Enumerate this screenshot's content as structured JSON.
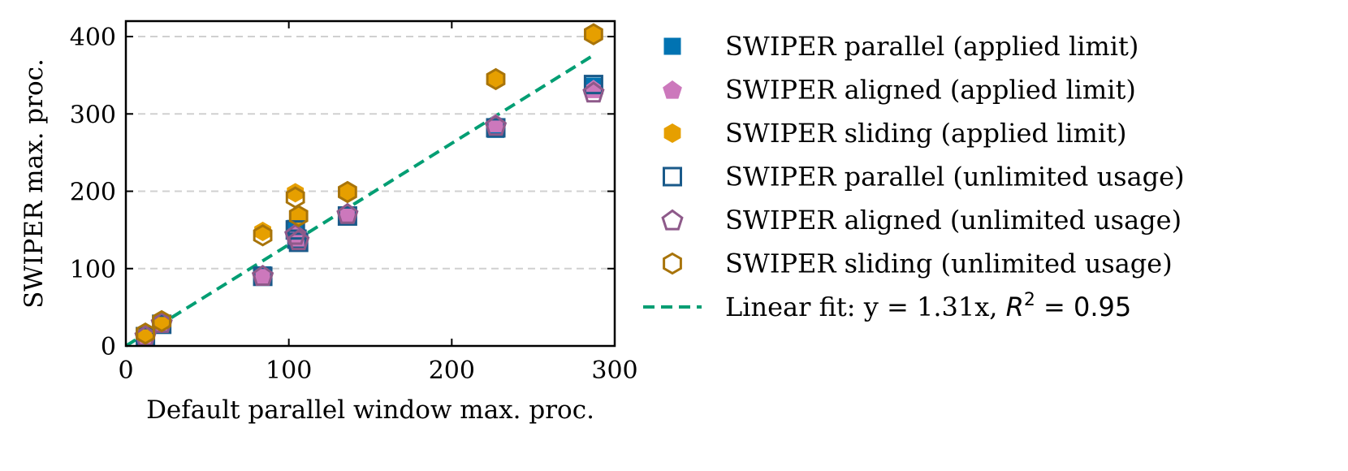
{
  "chart_data": {
    "type": "scatter",
    "xlabel": "Default parallel window max. proc.",
    "ylabel": "SWIPER max. proc.",
    "xlim": [
      0,
      300
    ],
    "ylim": [
      0,
      420
    ],
    "x_ticks": [
      0,
      100,
      200,
      300
    ],
    "x_tick_labels": [
      "0",
      "100",
      "200",
      "300"
    ],
    "y_ticks": [
      0,
      100,
      200,
      300,
      400
    ],
    "y_tick_labels": [
      "0",
      "100",
      "200",
      "300",
      "400"
    ],
    "grid": "horizontal dashed",
    "legend_position": "right outside",
    "series": [
      {
        "name": "SWIPER parallel (applied limit)",
        "marker": "square",
        "filled": true,
        "color": "#0173B2",
        "points": [
          [
            12,
            12
          ],
          [
            22,
            28
          ],
          [
            84,
            92
          ],
          [
            104,
            152
          ],
          [
            105,
            140
          ],
          [
            106,
            133
          ],
          [
            136,
            168
          ],
          [
            227,
            280
          ],
          [
            287,
            336
          ]
        ]
      },
      {
        "name": "SWIPER aligned (applied limit)",
        "marker": "pentagon",
        "filled": true,
        "color": "#CC78BC",
        "points": [
          [
            12,
            12
          ],
          [
            22,
            30
          ],
          [
            84,
            90
          ],
          [
            104,
            146
          ],
          [
            106,
            136
          ],
          [
            136,
            170
          ],
          [
            227,
            288
          ],
          [
            287,
            332
          ]
        ]
      },
      {
        "name": "SWIPER sliding (applied limit)",
        "marker": "hexagon",
        "filled": true,
        "color": "#E69F00",
        "points": [
          [
            12,
            15
          ],
          [
            22,
            32
          ],
          [
            84,
            148
          ],
          [
            104,
            198
          ],
          [
            106,
            168
          ],
          [
            136,
            199
          ],
          [
            227,
            345
          ],
          [
            287,
            403
          ]
        ]
      },
      {
        "name": "SWIPER parallel (unlimited usage)",
        "marker": "square",
        "filled": false,
        "color": "#1A5A8A",
        "points": [
          [
            12,
            12
          ],
          [
            22,
            28
          ],
          [
            84,
            90
          ],
          [
            104,
            150
          ],
          [
            105,
            138
          ],
          [
            106,
            134
          ],
          [
            136,
            168
          ],
          [
            227,
            282
          ],
          [
            287,
            338
          ]
        ]
      },
      {
        "name": "SWIPER aligned (unlimited usage)",
        "marker": "pentagon",
        "filled": false,
        "color": "#8E5A8A",
        "points": [
          [
            12,
            13
          ],
          [
            22,
            30
          ],
          [
            84,
            91
          ],
          [
            104,
            144
          ],
          [
            106,
            137
          ],
          [
            136,
            171
          ],
          [
            227,
            285
          ],
          [
            287,
            328
          ]
        ]
      },
      {
        "name": "SWIPER sliding (unlimited usage)",
        "marker": "hexagon",
        "filled": false,
        "color": "#A8740A",
        "points": [
          [
            12,
            16
          ],
          [
            22,
            32
          ],
          [
            84,
            143
          ],
          [
            104,
            192
          ],
          [
            106,
            168
          ],
          [
            136,
            199
          ],
          [
            227,
            345
          ],
          [
            287,
            403
          ]
        ]
      }
    ],
    "fit": {
      "name": "Linear fit: y = 1.31x, R² = 0.95",
      "label_text": "Linear fit: y = 1.31x, ",
      "r2_text": "R",
      "r2_sup": "2",
      "r2_value": " = 0.95",
      "slope": 1.31,
      "x_range": [
        0,
        287
      ],
      "color": "#029E73",
      "style": "dashed"
    }
  }
}
